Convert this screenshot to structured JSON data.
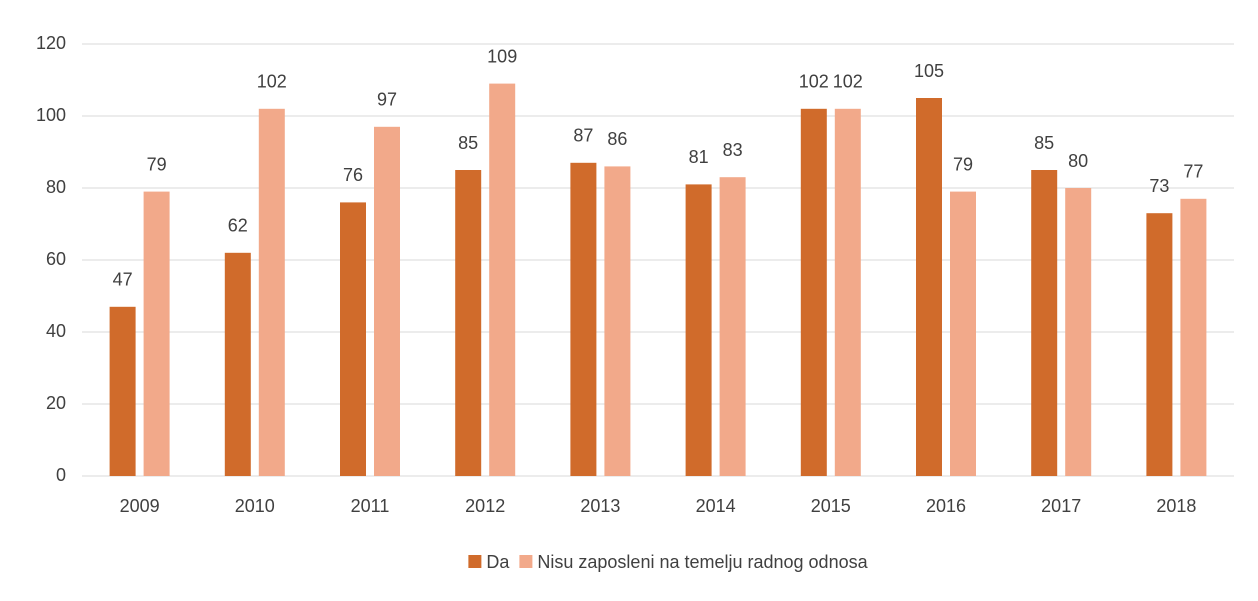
{
  "chart_data": {
    "type": "bar",
    "categories": [
      "2009",
      "2010",
      "2011",
      "2012",
      "2013",
      "2014",
      "2015",
      "2016",
      "2017",
      "2018"
    ],
    "series": [
      {
        "name": "Da",
        "color": "#d06b2b",
        "values": [
          47,
          62,
          76,
          85,
          87,
          81,
          102,
          105,
          85,
          73
        ]
      },
      {
        "name": "Nisu zaposleni na temelju radnog odnosa",
        "color": "#f2a98a",
        "values": [
          79,
          102,
          97,
          109,
          86,
          83,
          102,
          79,
          80,
          77
        ]
      }
    ],
    "ylim": [
      0,
      120
    ],
    "yticks": [
      0,
      20,
      40,
      60,
      80,
      100,
      120
    ],
    "grid": true,
    "legend": "bottom"
  }
}
